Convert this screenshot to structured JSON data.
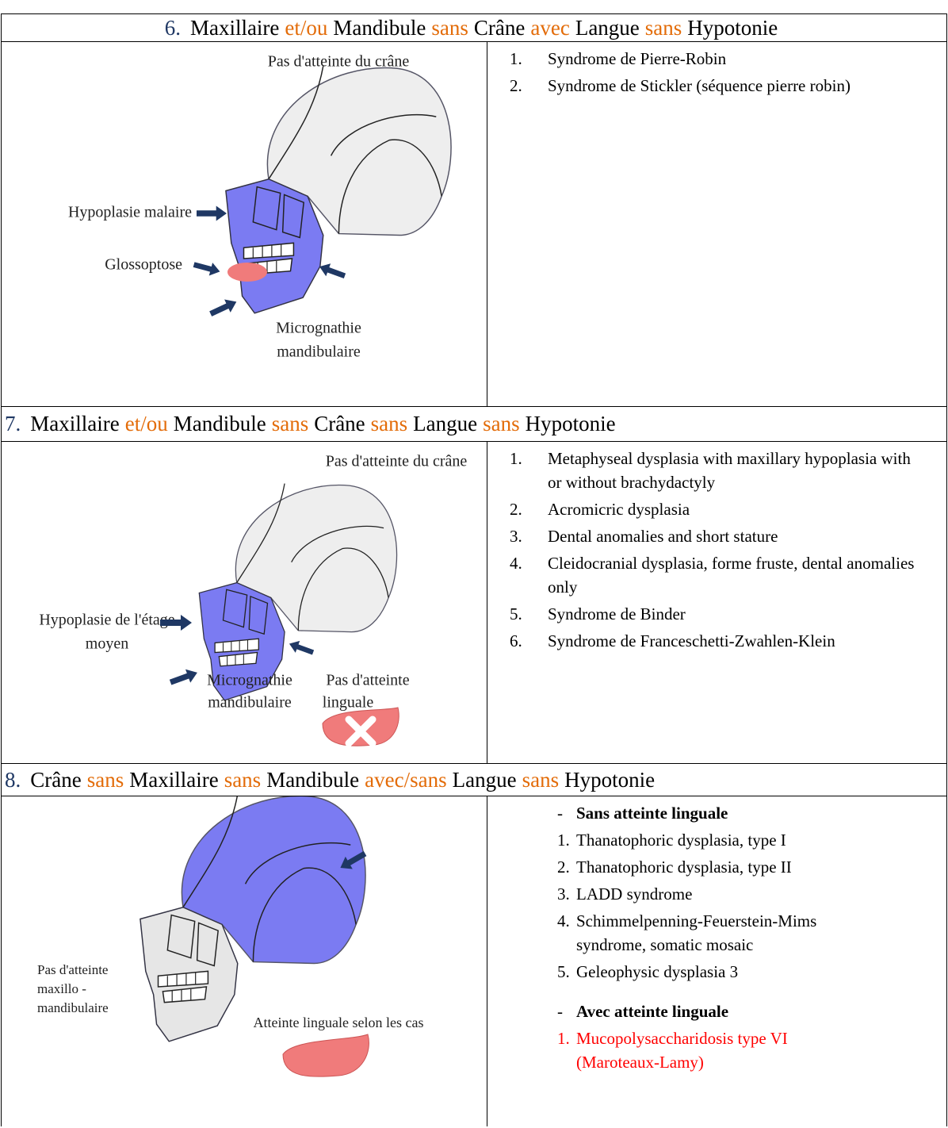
{
  "sections": [
    {
      "number": "6.",
      "header": [
        {
          "text": "Maxillaire"
        },
        {
          "text": "et/ou",
          "color": "#e36c09"
        },
        {
          "text": "Mandibule"
        },
        {
          "text": "sans",
          "color": "#e36c09"
        },
        {
          "text": "Crâne"
        },
        {
          "text": "avec",
          "color": "#e36c09"
        },
        {
          "text": "Langue"
        },
        {
          "text": "sans",
          "color": "#e36c09"
        },
        {
          "text": "Hypotonie"
        }
      ],
      "figure_labels": [
        [
          "Pas d'atteinte du crâne"
        ],
        [
          "Hypoplasie malaire"
        ],
        [
          "Glossoptose"
        ],
        [
          "Micrognathie",
          "mandibulaire"
        ]
      ],
      "groups": [
        {
          "items": [
            {
              "marker": "1.",
              "text": "Syndrome de Pierre-Robin"
            },
            {
              "marker": "2.",
              "text": "Syndrome de Stickler (séquence pierre robin)"
            }
          ]
        }
      ]
    },
    {
      "number": "7.",
      "header": [
        {
          "text": "Maxillaire"
        },
        {
          "text": "et/ou",
          "color": "#e36c09"
        },
        {
          "text": "Mandibule"
        },
        {
          "text": "sans",
          "color": "#e36c09"
        },
        {
          "text": "Crâne"
        },
        {
          "text": "sans",
          "color": "#e36c09"
        },
        {
          "text": "Langue"
        },
        {
          "text": "sans",
          "color": "#e36c09"
        },
        {
          "text": "Hypotonie"
        }
      ],
      "figure_labels": [
        [
          "Pas d'atteinte du crâne"
        ],
        [
          "Hypoplasie de l'étage",
          "moyen"
        ],
        [
          "Micrognathie",
          "mandibulaire"
        ],
        [
          "Pas d'atteinte",
          "linguale"
        ]
      ],
      "groups": [
        {
          "items": [
            {
              "marker": "1.",
              "text": "Metaphyseal dysplasia with maxillary hypoplasia with or without brachydactyly"
            },
            {
              "marker": "2.",
              "text": "Acromicric dysplasia"
            },
            {
              "marker": "3.",
              "text": "Dental anomalies and short stature"
            },
            {
              "marker": "4.",
              "text": "Cleidocranial dysplasia, forme fruste, dental anomalies only"
            },
            {
              "marker": "5.",
              "text": "Syndrome de Binder"
            },
            {
              "marker": "6.",
              "text": "Syndrome de Franceschetti-Zwahlen-Klein"
            }
          ]
        }
      ]
    },
    {
      "number": "8.",
      "header": [
        {
          "text": "Crâne"
        },
        {
          "text": "sans",
          "color": "#e36c09"
        },
        {
          "text": "Maxillaire"
        },
        {
          "text": "sans",
          "color": "#e36c09"
        },
        {
          "text": "Mandibule"
        },
        {
          "text": "avec/sans",
          "color": "#e36c09"
        },
        {
          "text": "Langue"
        },
        {
          "text": "sans",
          "color": "#e36c09"
        },
        {
          "text": "Hypotonie"
        }
      ],
      "figure_labels": [
        [
          "Pas d'atteinte",
          "maxillo -",
          "mandibulaire"
        ],
        [
          "Atteinte linguale selon les cas"
        ]
      ],
      "groups": [
        {
          "marker": "-",
          "heading": "Sans atteinte linguale",
          "items": [
            {
              "marker": "1.",
              "text": "Thanatophoric dysplasia, type I"
            },
            {
              "marker": "2.",
              "text": "Thanatophoric dysplasia, type II"
            },
            {
              "marker": "3.",
              "text": "LADD syndrome"
            },
            {
              "marker": "4.",
              "text": "Schimmelpenning-Feuerstein-Mims syndrome, somatic mosaic"
            },
            {
              "marker": "5.",
              "text": "Geleophysic dysplasia 3"
            }
          ]
        },
        {
          "marker": "-",
          "heading": "Avec atteinte linguale",
          "items": [
            {
              "marker": "1.",
              "text": "Mucopolysaccharidosis type VI (Maroteaux-Lamy)",
              "color": "#ff0000"
            }
          ]
        }
      ]
    }
  ]
}
